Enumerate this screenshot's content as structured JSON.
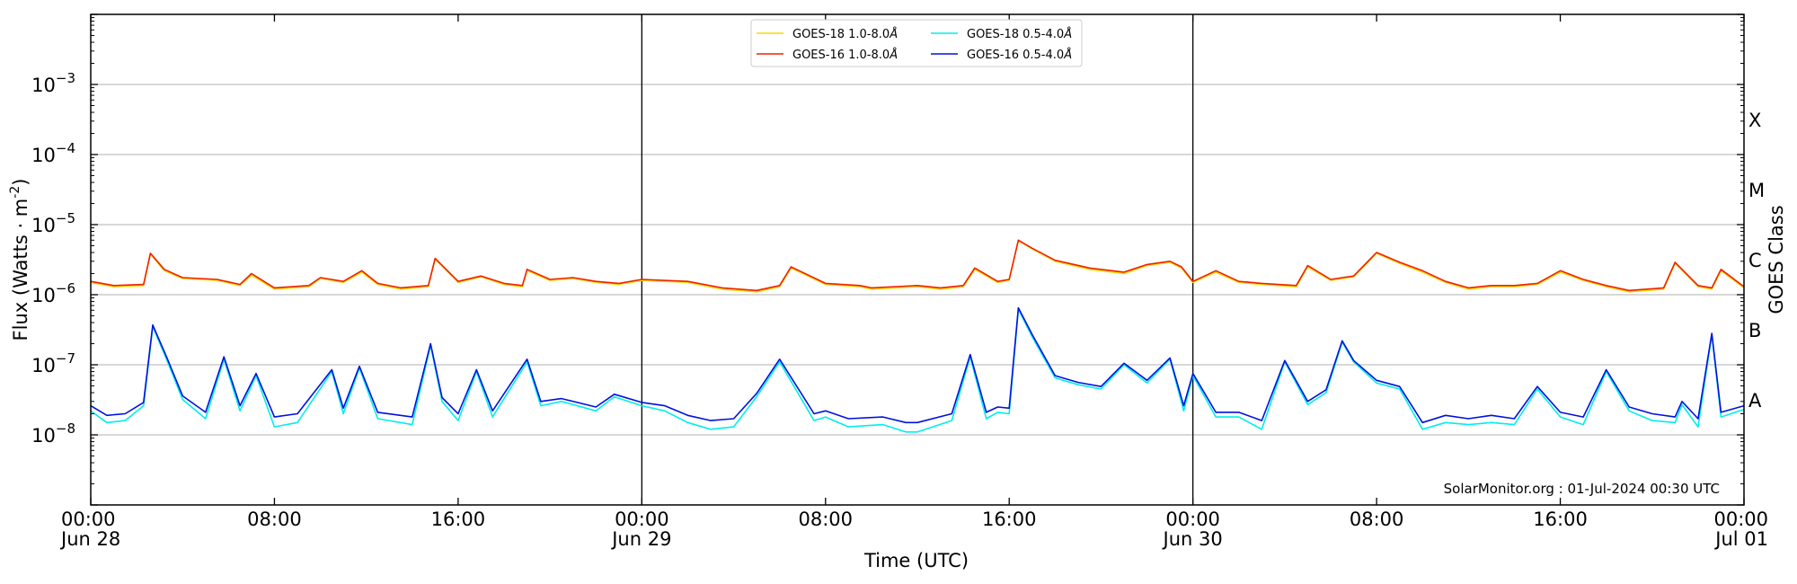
{
  "chart_data": {
    "type": "line",
    "x_axis": {
      "label": "Time (UTC)",
      "range": [
        "2024-06-28 00:00",
        "2024-07-01 00:00"
      ],
      "ticks": [
        {
          "t": 0,
          "time": "00:00",
          "date": "Jun 28"
        },
        {
          "t": 8,
          "time": "08:00",
          "date": ""
        },
        {
          "t": 16,
          "time": "16:00",
          "date": ""
        },
        {
          "t": 24,
          "time": "00:00",
          "date": "Jun 29"
        },
        {
          "t": 32,
          "time": "08:00",
          "date": ""
        },
        {
          "t": 40,
          "time": "16:00",
          "date": ""
        },
        {
          "t": 48,
          "time": "00:00",
          "date": "Jun 30"
        },
        {
          "t": 56,
          "time": "08:00",
          "date": ""
        },
        {
          "t": 64,
          "time": "16:00",
          "date": ""
        },
        {
          "t": 72,
          "time": "00:00",
          "date": "Jul 01"
        }
      ],
      "day_lines": [
        24,
        48
      ]
    },
    "y_axis": {
      "label": "Flux (Watts · m",
      "label_sup": "-2",
      "label_close": ")",
      "scale": "log",
      "range": [
        1e-09,
        0.01
      ],
      "ticks": [
        {
          "exp": -8,
          "base": "10",
          "sup": "−8"
        },
        {
          "exp": -7,
          "base": "10",
          "sup": "−7"
        },
        {
          "exp": -6,
          "base": "10",
          "sup": "−6"
        },
        {
          "exp": -5,
          "base": "10",
          "sup": "−5"
        },
        {
          "exp": -4,
          "base": "10",
          "sup": "−4"
        },
        {
          "exp": -3,
          "base": "10",
          "sup": "−3"
        }
      ],
      "grid": true
    },
    "right_axis": {
      "label": "GOES Class",
      "classes": [
        {
          "label": "A",
          "center_exp": -7.5
        },
        {
          "label": "B",
          "center_exp": -6.5
        },
        {
          "label": "C",
          "center_exp": -5.5
        },
        {
          "label": "M",
          "center_exp": -4.5
        },
        {
          "label": "X",
          "center_exp": -3.5
        }
      ]
    },
    "legend": {
      "placement": "top-center",
      "entries": [
        {
          "series": "goes18_long",
          "label": "GOES-18 1.0-8.0",
          "unit": "Å"
        },
        {
          "series": "goes18_short",
          "label": "GOES-18 0.5-4.0",
          "unit": "Å"
        },
        {
          "series": "goes16_long",
          "label": "GOES-16 1.0-8.0",
          "unit": "Å"
        },
        {
          "series": "goes16_short",
          "label": "GOES-16 0.5-4.0",
          "unit": "Å"
        }
      ]
    },
    "series": [
      {
        "id": "goes18_long",
        "name": "GOES-18 1.0-8.0Å",
        "color": "#ffd700",
        "x": [
          0,
          1,
          2.3,
          2.6,
          3.2,
          4,
          5.5,
          6.5,
          7,
          8,
          9.5,
          10,
          11,
          11.8,
          12.5,
          13.5,
          14.7,
          15,
          16,
          17,
          18,
          18.8,
          19,
          20,
          21,
          22,
          23,
          24,
          26,
          27.5,
          29,
          30,
          30.5,
          32,
          33.5,
          34,
          36,
          37,
          38,
          38.5,
          39.5,
          40,
          40.4,
          41,
          42,
          43.5,
          45,
          46,
          47,
          47.5,
          48,
          49,
          50,
          51,
          52.5,
          53,
          54,
          55,
          56,
          57,
          58,
          59,
          60,
          61,
          62,
          63,
          64,
          65,
          66,
          67,
          68.5,
          69,
          70,
          70.6,
          71,
          72
        ],
        "y": [
          1.5e-06,
          1.3e-06,
          1.35e-06,
          3.8e-06,
          2.2e-06,
          1.7e-06,
          1.6e-06,
          1.35e-06,
          1.9e-06,
          1.2e-06,
          1.3e-06,
          1.7e-06,
          1.5e-06,
          2.1e-06,
          1.4e-06,
          1.2e-06,
          1.3e-06,
          3.2e-06,
          1.5e-06,
          1.8e-06,
          1.4e-06,
          1.3e-06,
          2.2e-06,
          1.6e-06,
          1.7e-06,
          1.5e-06,
          1.4e-06,
          1.6e-06,
          1.5e-06,
          1.2e-06,
          1.1e-06,
          1.3e-06,
          2.4e-06,
          1.4e-06,
          1.3e-06,
          1.2e-06,
          1.3e-06,
          1.2e-06,
          1.3e-06,
          2.3e-06,
          1.5e-06,
          1.6e-06,
          5.9e-06,
          4.5e-06,
          3e-06,
          2.3e-06,
          2e-06,
          2.6e-06,
          2.9e-06,
          2.4e-06,
          1.5e-06,
          2.1e-06,
          1.5e-06,
          1.4e-06,
          1.3e-06,
          2.5e-06,
          1.6e-06,
          1.8e-06,
          3.9e-06,
          2.8e-06,
          2.1e-06,
          1.5e-06,
          1.2e-06,
          1.3e-06,
          1.3e-06,
          1.4e-06,
          2.1e-06,
          1.6e-06,
          1.3e-06,
          1.1e-06,
          1.2e-06,
          2.8e-06,
          1.3e-06,
          1.2e-06,
          2.2e-06,
          1.25e-06
        ]
      },
      {
        "id": "goes16_long",
        "name": "GOES-16 1.0-8.0Å",
        "color": "#ee2200",
        "x": [
          0,
          1,
          2.3,
          2.6,
          3.2,
          4,
          5.5,
          6.5,
          7,
          8,
          9.5,
          10,
          11,
          11.8,
          12.5,
          13.5,
          14.7,
          15,
          16,
          17,
          18,
          18.8,
          19,
          20,
          21,
          22,
          23,
          24,
          26,
          27.5,
          29,
          30,
          30.5,
          32,
          33.5,
          34,
          36,
          37,
          38,
          38.5,
          39.5,
          40,
          40.4,
          41,
          42,
          43.5,
          45,
          46,
          47,
          47.5,
          48,
          49,
          50,
          51,
          52.5,
          53,
          54,
          55,
          56,
          57,
          58,
          59,
          60,
          61,
          62,
          63,
          64,
          65,
          66,
          67,
          68.5,
          69,
          70,
          70.6,
          71,
          72
        ],
        "y": [
          1.55e-06,
          1.35e-06,
          1.4e-06,
          3.9e-06,
          2.3e-06,
          1.75e-06,
          1.65e-06,
          1.4e-06,
          2e-06,
          1.25e-06,
          1.35e-06,
          1.75e-06,
          1.55e-06,
          2.2e-06,
          1.45e-06,
          1.25e-06,
          1.35e-06,
          3.3e-06,
          1.55e-06,
          1.85e-06,
          1.45e-06,
          1.35e-06,
          2.3e-06,
          1.65e-06,
          1.75e-06,
          1.55e-06,
          1.45e-06,
          1.65e-06,
          1.55e-06,
          1.25e-06,
          1.15e-06,
          1.35e-06,
          2.5e-06,
          1.45e-06,
          1.35e-06,
          1.25e-06,
          1.35e-06,
          1.25e-06,
          1.35e-06,
          2.4e-06,
          1.55e-06,
          1.65e-06,
          6e-06,
          4.6e-06,
          3.1e-06,
          2.4e-06,
          2.1e-06,
          2.7e-06,
          3e-06,
          2.5e-06,
          1.55e-06,
          2.2e-06,
          1.55e-06,
          1.45e-06,
          1.35e-06,
          2.6e-06,
          1.65e-06,
          1.85e-06,
          4e-06,
          2.9e-06,
          2.2e-06,
          1.55e-06,
          1.25e-06,
          1.35e-06,
          1.35e-06,
          1.45e-06,
          2.2e-06,
          1.65e-06,
          1.35e-06,
          1.15e-06,
          1.25e-06,
          2.9e-06,
          1.35e-06,
          1.25e-06,
          2.3e-06,
          1.3e-06
        ]
      },
      {
        "id": "goes18_short",
        "name": "GOES-18 0.5-4.0Å",
        "color": "#00eeee",
        "x": [
          0,
          0.7,
          1.5,
          2.3,
          2.7,
          3.3,
          4,
          5,
          5.8,
          6.5,
          7.2,
          8,
          9,
          10.5,
          11,
          11.7,
          12.5,
          14,
          14.8,
          15.3,
          16,
          16.8,
          17.5,
          19,
          19.6,
          20.5,
          22,
          22.8,
          24,
          25,
          26,
          27,
          28,
          29,
          30,
          31.5,
          32,
          33,
          34.5,
          35.5,
          36,
          37.5,
          38.3,
          39,
          39.5,
          40,
          40.4,
          41,
          42,
          43,
          44,
          45,
          46,
          47,
          47.6,
          48,
          49,
          50,
          51,
          52,
          53,
          53.8,
          54.5,
          55,
          56,
          57,
          58,
          59,
          60,
          61,
          62,
          63,
          64,
          65,
          66,
          67,
          68,
          69,
          69.3,
          70,
          70.6,
          71,
          72
        ],
        "y": [
          2.2e-08,
          1.5e-08,
          1.6e-08,
          2.6e-08,
          3.5e-07,
          1.2e-07,
          3.2e-08,
          1.7e-08,
          1.2e-07,
          2.2e-08,
          7e-08,
          1.3e-08,
          1.5e-08,
          8e-08,
          2e-08,
          9e-08,
          1.7e-08,
          1.4e-08,
          1.9e-07,
          3e-08,
          1.6e-08,
          8e-08,
          1.8e-08,
          1.1e-07,
          2.6e-08,
          3e-08,
          2.2e-08,
          3.5e-08,
          2.6e-08,
          2.2e-08,
          1.5e-08,
          1.2e-08,
          1.3e-08,
          3.5e-08,
          1.1e-07,
          1.6e-08,
          1.8e-08,
          1.3e-08,
          1.4e-08,
          1.1e-08,
          1.1e-08,
          1.6e-08,
          1.3e-07,
          1.7e-08,
          2.1e-08,
          2e-08,
          6.2e-07,
          2.5e-07,
          6.5e-08,
          5.2e-08,
          4.5e-08,
          1e-07,
          5.5e-08,
          1.2e-07,
          2.2e-08,
          7e-08,
          1.8e-08,
          1.8e-08,
          1.2e-08,
          1.1e-07,
          2.7e-08,
          4e-08,
          2.1e-07,
          1.1e-07,
          5.5e-08,
          4.5e-08,
          1.2e-08,
          1.5e-08,
          1.4e-08,
          1.5e-08,
          1.4e-08,
          4.5e-08,
          1.8e-08,
          1.4e-08,
          8e-08,
          2.2e-08,
          1.6e-08,
          1.5e-08,
          2.7e-08,
          1.3e-08,
          2.7e-07,
          1.8e-08,
          2.3e-08
        ]
      },
      {
        "id": "goes16_short",
        "name": "GOES-16 0.5-4.0Å",
        "color": "#0011dd",
        "x": [
          0,
          0.7,
          1.5,
          2.3,
          2.7,
          3.3,
          4,
          5,
          5.8,
          6.5,
          7.2,
          8,
          9,
          10.5,
          11,
          11.7,
          12.5,
          14,
          14.8,
          15.3,
          16,
          16.8,
          17.5,
          19,
          19.6,
          20.5,
          22,
          22.8,
          24,
          25,
          26,
          27,
          28,
          29,
          30,
          31.5,
          32,
          33,
          34.5,
          35.5,
          36,
          37.5,
          38.3,
          39,
          39.5,
          40,
          40.4,
          41,
          42,
          43,
          44,
          45,
          46,
          47,
          47.6,
          48,
          49,
          50,
          51,
          52,
          53,
          53.8,
          54.5,
          55,
          56,
          57,
          58,
          59,
          60,
          61,
          62,
          63,
          64,
          65,
          66,
          67,
          68,
          69,
          69.3,
          70,
          70.6,
          71,
          72
        ],
        "y": [
          2.6e-08,
          1.9e-08,
          2e-08,
          2.9e-08,
          3.7e-07,
          1.3e-07,
          3.6e-08,
          2.1e-08,
          1.3e-07,
          2.6e-08,
          7.5e-08,
          1.8e-08,
          2e-08,
          8.5e-08,
          2.4e-08,
          9.5e-08,
          2.1e-08,
          1.8e-08,
          2e-07,
          3.4e-08,
          2e-08,
          8.5e-08,
          2.2e-08,
          1.2e-07,
          3e-08,
          3.3e-08,
          2.5e-08,
          3.8e-08,
          2.9e-08,
          2.6e-08,
          1.9e-08,
          1.6e-08,
          1.7e-08,
          3.9e-08,
          1.2e-07,
          2e-08,
          2.2e-08,
          1.7e-08,
          1.8e-08,
          1.5e-08,
          1.5e-08,
          2e-08,
          1.4e-07,
          2.1e-08,
          2.5e-08,
          2.4e-08,
          6.5e-07,
          2.7e-07,
          7e-08,
          5.6e-08,
          4.9e-08,
          1.05e-07,
          6e-08,
          1.25e-07,
          2.6e-08,
          7.5e-08,
          2.1e-08,
          2.1e-08,
          1.6e-08,
          1.15e-07,
          3e-08,
          4.4e-08,
          2.2e-07,
          1.15e-07,
          6e-08,
          4.9e-08,
          1.5e-08,
          1.9e-08,
          1.7e-08,
          1.9e-08,
          1.7e-08,
          4.9e-08,
          2.1e-08,
          1.8e-08,
          8.5e-08,
          2.5e-08,
          2e-08,
          1.8e-08,
          3e-08,
          1.7e-08,
          2.8e-07,
          2.1e-08,
          2.6e-08
        ]
      }
    ]
  },
  "credit": "SolarMonitor.org : 01-Jul-2024 00:30 UTC"
}
